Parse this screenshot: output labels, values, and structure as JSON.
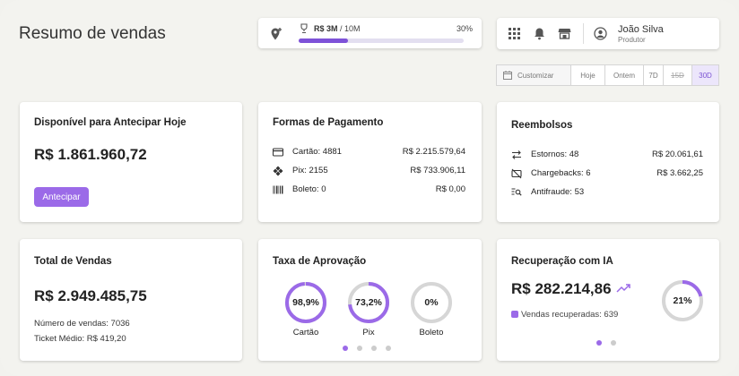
{
  "page_title": "Resumo de vendas",
  "goal": {
    "label_value": "R$ 3M",
    "label_total": "/ 10M",
    "percent_label": "30%",
    "progress": 0.3
  },
  "user": {
    "name": "João Silva",
    "role": "Produtor",
    "icons": [
      "grid-icon",
      "bell-icon",
      "store-icon",
      "user-circle-icon"
    ]
  },
  "filters": {
    "customize": "Customizar",
    "options": [
      "Hoje",
      "Ontem",
      "7D",
      "15D",
      "30D"
    ],
    "active": "30D"
  },
  "anticipate": {
    "title": "Disponível para Antecipar Hoje",
    "value": "R$ 1.861.960,72",
    "button": "Antecipar"
  },
  "payments": {
    "title": "Formas de Pagamento",
    "rows": [
      {
        "label": "Cartão: 4881",
        "value": "R$ 2.215.579,64"
      },
      {
        "label": "Pix: 2155",
        "value": "R$ 733.906,11"
      },
      {
        "label": "Boleto: 0",
        "value": "R$ 0,00"
      }
    ]
  },
  "refunds": {
    "title": "Reembolsos",
    "rows": [
      {
        "label": "Estornos: 48",
        "value": "R$ 20.061,61"
      },
      {
        "label": "Chargebacks: 6",
        "value": "R$ 3.662,25"
      },
      {
        "label": "Antifraude: 53",
        "value": ""
      }
    ]
  },
  "sales": {
    "title": "Total de Vendas",
    "value": "R$ 2.949.485,75",
    "count": "Número de vendas: 7036",
    "ticket": "Ticket Médio: R$ 419,20"
  },
  "approval": {
    "title": "Taxa de Aprovação",
    "rings": [
      {
        "label": "98,9%",
        "caption": "Cartão",
        "value": 0.989
      },
      {
        "label": "73,2%",
        "caption": "Pix",
        "value": 0.732
      },
      {
        "label": "0%",
        "caption": "Boleto",
        "value": 0
      }
    ],
    "pages": 4,
    "active_page": 0
  },
  "recovery": {
    "title": "Recuperação com IA",
    "value": "R$ 282.214,86",
    "legend": "Vendas recuperadas: 639",
    "percent_label": "21%",
    "percent": 0.21,
    "pages": 2,
    "active_page": 0
  },
  "colors": {
    "accent": "#9b6ae8",
    "accent_dark": "#7e52d8",
    "track": "#d6d6d6"
  }
}
